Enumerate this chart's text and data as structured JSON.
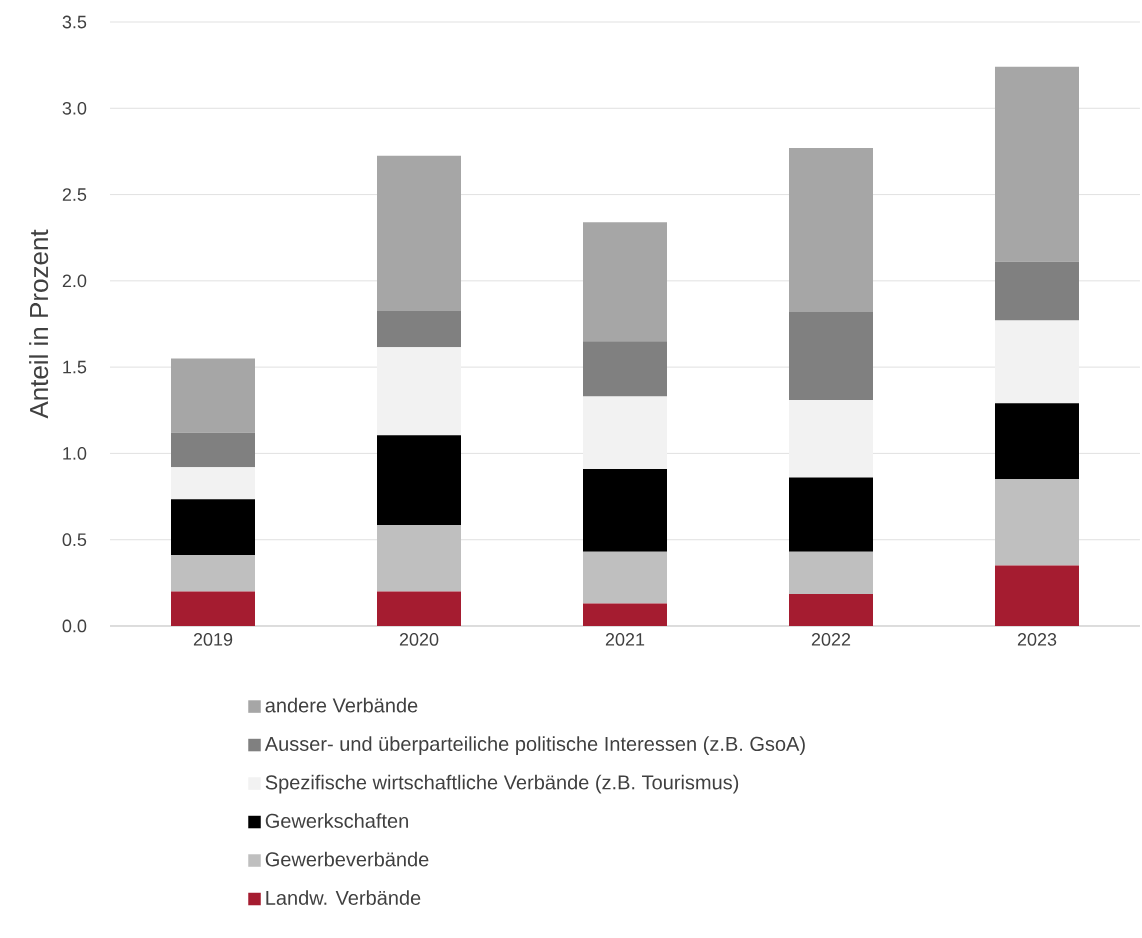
{
  "chart_data": {
    "type": "bar",
    "stacked": true,
    "ylabel": "Anteil in Prozent",
    "categories": [
      "2019",
      "2020",
      "2021",
      "2022",
      "2023"
    ],
    "series": [
      {
        "name": "Landw. Verbände",
        "color": "#a51c30",
        "values": [
          0.2,
          0.2,
          0.13,
          0.185,
          0.35
        ]
      },
      {
        "name": "Gewerbeverbände",
        "color": "#bfbfbf",
        "values": [
          0.21,
          0.385,
          0.3,
          0.245,
          0.5
        ]
      },
      {
        "name": "Gewerkschaften",
        "color": "#000000",
        "values": [
          0.325,
          0.52,
          0.48,
          0.43,
          0.44
        ]
      },
      {
        "name": "Spezifische wirtschaftliche Verbände (z.B. Tourismus)",
        "color": "#f2f2f2",
        "values": [
          0.185,
          0.51,
          0.42,
          0.45,
          0.48
        ]
      },
      {
        "name": "Ausser- und überparteiliche politische Interessen (z.B. GsoA)",
        "color": "#808080",
        "values": [
          0.2,
          0.21,
          0.32,
          0.51,
          0.34
        ]
      },
      {
        "name": "andere Verbände",
        "color": "#a6a6a6",
        "values": [
          0.43,
          0.9,
          0.69,
          0.95,
          1.13
        ]
      }
    ],
    "ylim": [
      0,
      3.5
    ],
    "yticks": [
      {
        "value": 0,
        "label": "0.0"
      },
      {
        "value": 0.5,
        "label": "0.5"
      },
      {
        "value": 1,
        "label": "1.0"
      },
      {
        "value": 1.5,
        "label": "1.5"
      },
      {
        "value": 2,
        "label": "2.0"
      },
      {
        "value": 2.5,
        "label": "2.5"
      },
      {
        "value": 3,
        "label": "3.0"
      },
      {
        "value": 3.5,
        "label": "3.5"
      }
    ],
    "grid": "y",
    "legend": "bottom"
  }
}
